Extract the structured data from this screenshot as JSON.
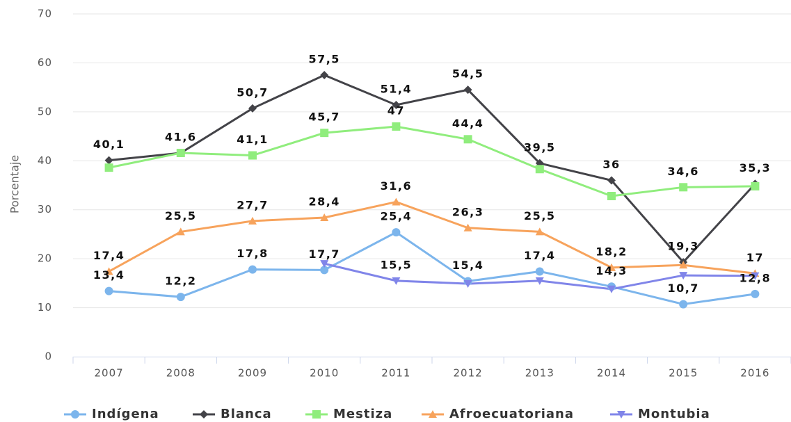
{
  "chart_data": {
    "type": "line",
    "y_axis_label": "Porcentaje",
    "categories": [
      "2007",
      "2008",
      "2009",
      "2010",
      "2011",
      "2012",
      "2013",
      "2014",
      "2015",
      "2016"
    ],
    "ylim": [
      0,
      70
    ],
    "yticks": [
      0,
      10,
      20,
      30,
      40,
      50,
      60,
      70
    ],
    "grid": true,
    "legend": "bottom",
    "series": [
      {
        "name": "Indígena",
        "color": "#7cb5ec",
        "marker": "circle",
        "values": [
          13.4,
          12.2,
          17.8,
          17.7,
          25.4,
          15.4,
          17.4,
          14.3,
          10.7,
          12.8
        ],
        "value_labels": [
          "13,4",
          "12,2",
          "17,8",
          "17,7",
          "25,4",
          "15,4",
          "17,4",
          "14,3",
          "10,7",
          "12,8"
        ]
      },
      {
        "name": "Blanca",
        "color": "#434348",
        "marker": "diamond",
        "values": [
          40.1,
          41.6,
          50.7,
          57.5,
          51.4,
          54.5,
          39.5,
          36,
          19.3,
          35.3
        ],
        "value_labels": [
          "40,1",
          "41,6",
          "50,7",
          "57,5",
          "51,4",
          "54,5",
          "39,5",
          "36",
          "19,3",
          "35,3"
        ]
      },
      {
        "name": "Mestiza",
        "color": "#90ed7d",
        "marker": "square",
        "values": [
          38.6,
          41.6,
          41.1,
          45.7,
          47,
          44.4,
          38.3,
          32.8,
          34.6,
          34.8
        ],
        "value_labels": [
          null,
          null,
          "41,1",
          "45,7",
          "47",
          "44,4",
          null,
          null,
          "34,6",
          null
        ]
      },
      {
        "name": "Afroecuatoriana",
        "color": "#f7a35c",
        "marker": "triangle",
        "values": [
          17.4,
          25.5,
          27.7,
          28.4,
          31.6,
          26.3,
          25.5,
          18.2,
          18.7,
          17
        ],
        "value_labels": [
          "17,4",
          "25,5",
          "27,7",
          "28,4",
          "31,6",
          "26,3",
          "25,5",
          "18,2",
          null,
          "17"
        ]
      },
      {
        "name": "Montubia",
        "color": "#8085e9",
        "marker": "triangle-down",
        "values": [
          null,
          null,
          null,
          19,
          15.5,
          14.9,
          15.5,
          13.8,
          16.6,
          16.5
        ],
        "value_labels": [
          null,
          null,
          null,
          null,
          "15,5",
          null,
          null,
          null,
          null,
          null
        ]
      }
    ]
  }
}
